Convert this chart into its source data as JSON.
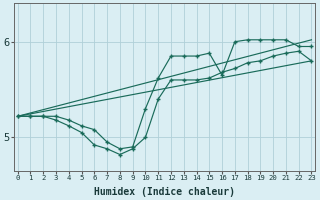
{
  "xlabel": "Humidex (Indice chaleur)",
  "x": [
    0,
    1,
    2,
    3,
    4,
    5,
    6,
    7,
    8,
    9,
    10,
    11,
    12,
    13,
    14,
    15,
    16,
    17,
    18,
    19,
    20,
    21,
    22,
    23
  ],
  "line1": [
    5.22,
    5.22,
    5.22,
    5.22,
    5.18,
    5.12,
    5.08,
    4.95,
    4.88,
    4.9,
    5.3,
    5.62,
    5.85,
    5.85,
    5.85,
    5.88,
    5.65,
    6.0,
    6.02,
    6.02,
    6.02,
    6.02,
    5.95,
    5.95
  ],
  "line2": [
    5.22,
    5.22,
    5.22,
    5.18,
    5.12,
    5.05,
    4.92,
    4.88,
    4.82,
    4.88,
    5.0,
    5.4,
    5.6,
    5.6,
    5.6,
    5.62,
    5.68,
    5.72,
    5.78,
    5.8,
    5.85,
    5.88,
    5.9,
    5.8
  ],
  "line3_x": [
    0,
    23
  ],
  "line3_y": [
    5.22,
    6.02
  ],
  "line4_x": [
    0,
    23
  ],
  "line4_y": [
    5.22,
    5.8
  ],
  "bg_color": "#daeef3",
  "line_color": "#1a6b5a",
  "grid_color": "#b0d0d8",
  "yticks": [
    5,
    6
  ],
  "ylim": [
    4.65,
    6.4
  ],
  "xlim": [
    -0.3,
    23.3
  ]
}
